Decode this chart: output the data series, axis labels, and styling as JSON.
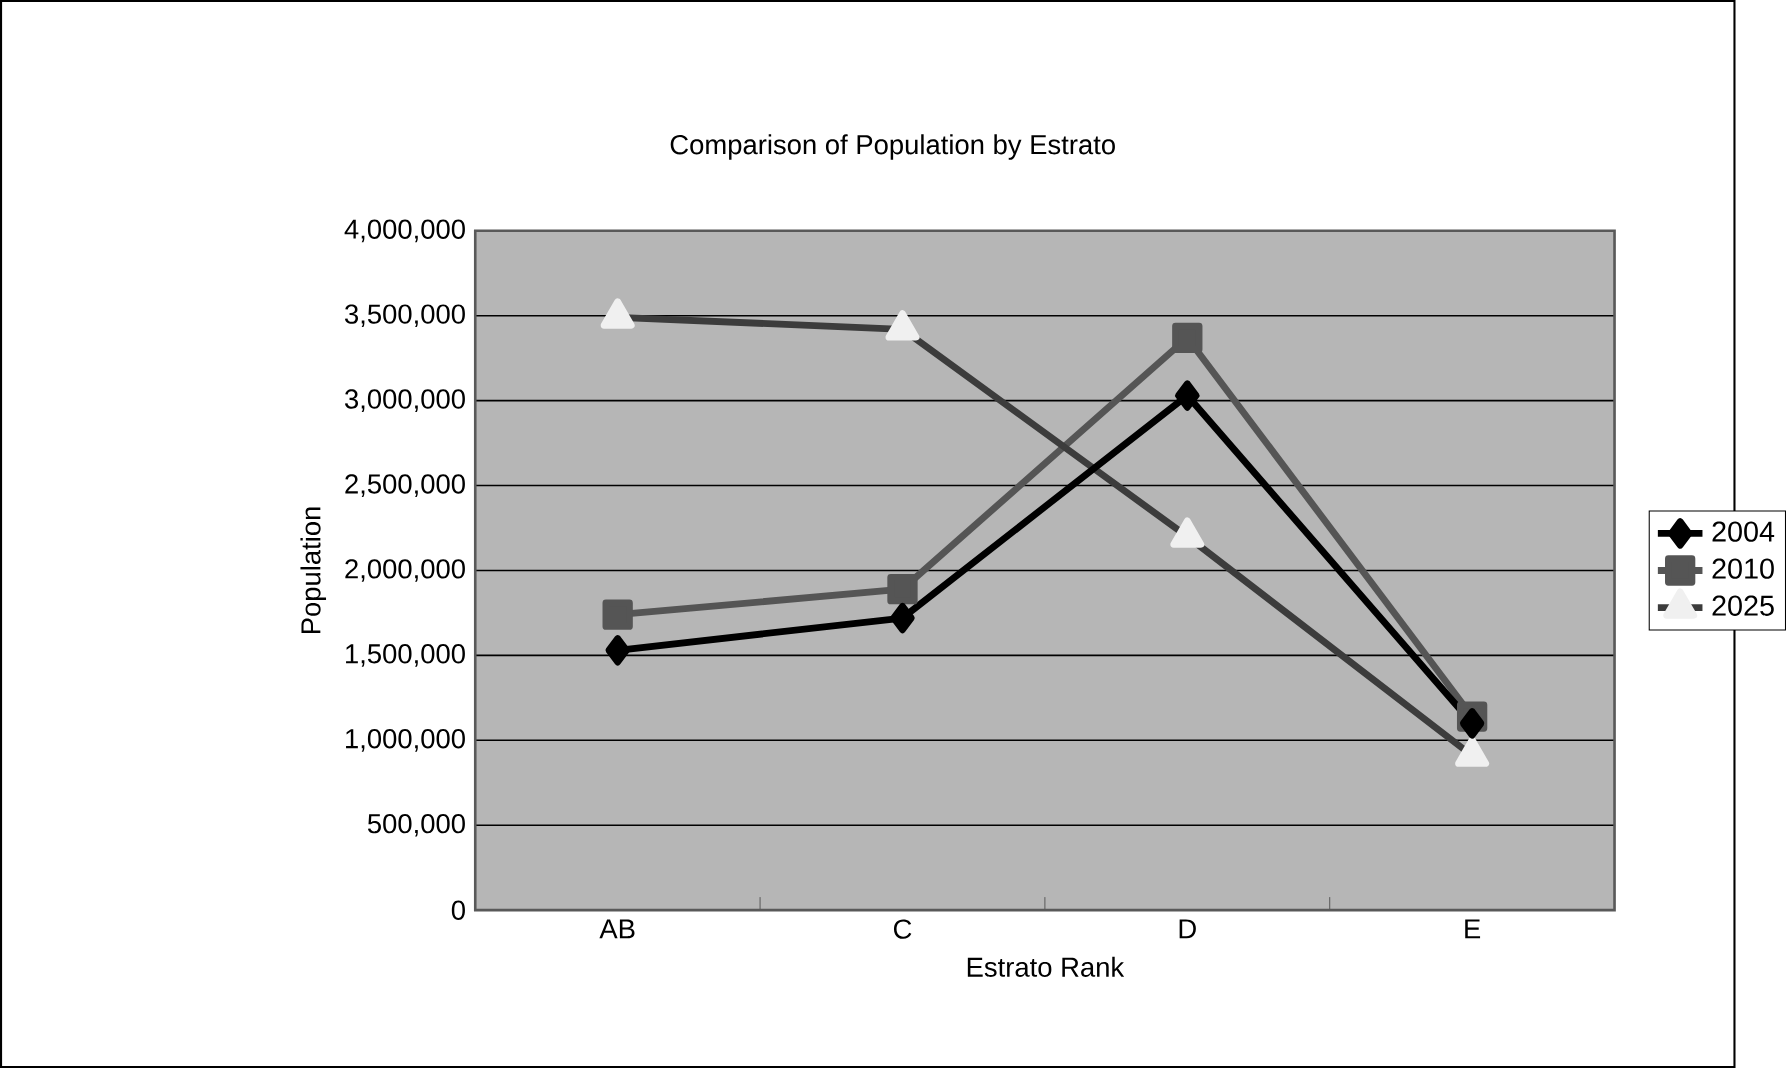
{
  "chart_data": {
    "type": "line",
    "title": "Comparison of Population by Estrato",
    "xlabel": "Estrato Rank",
    "ylabel": "Population",
    "categories": [
      "AB",
      "C",
      "D",
      "E"
    ],
    "series": [
      {
        "name": "2004",
        "color": "#000000",
        "marker": "diamond",
        "values": [
          1530000,
          1720000,
          3030000,
          1100000
        ]
      },
      {
        "name": "2010",
        "color": "#555555",
        "marker": "square",
        "values": [
          1740000,
          1890000,
          3370000,
          1140000
        ]
      },
      {
        "name": "2025",
        "color": "#3c3c3c",
        "marker": "triangle",
        "values": [
          3490000,
          3420000,
          2200000,
          910000
        ]
      }
    ],
    "ylim": [
      0,
      4000000
    ],
    "yticks": [
      {
        "value": 0,
        "label": "0"
      },
      {
        "value": 500000,
        "label": "500,000"
      },
      {
        "value": 1000000,
        "label": "1,000,000"
      },
      {
        "value": 1500000,
        "label": "1,500,000"
      },
      {
        "value": 2000000,
        "label": "2,000,000"
      },
      {
        "value": 2500000,
        "label": "2,500,000"
      },
      {
        "value": 3000000,
        "label": "3,000,000"
      },
      {
        "value": 3500000,
        "label": "3,500,000"
      },
      {
        "value": 4000000,
        "label": "4,000,000"
      }
    ],
    "grid": "y",
    "legend": "right",
    "line_style": "solid"
  }
}
